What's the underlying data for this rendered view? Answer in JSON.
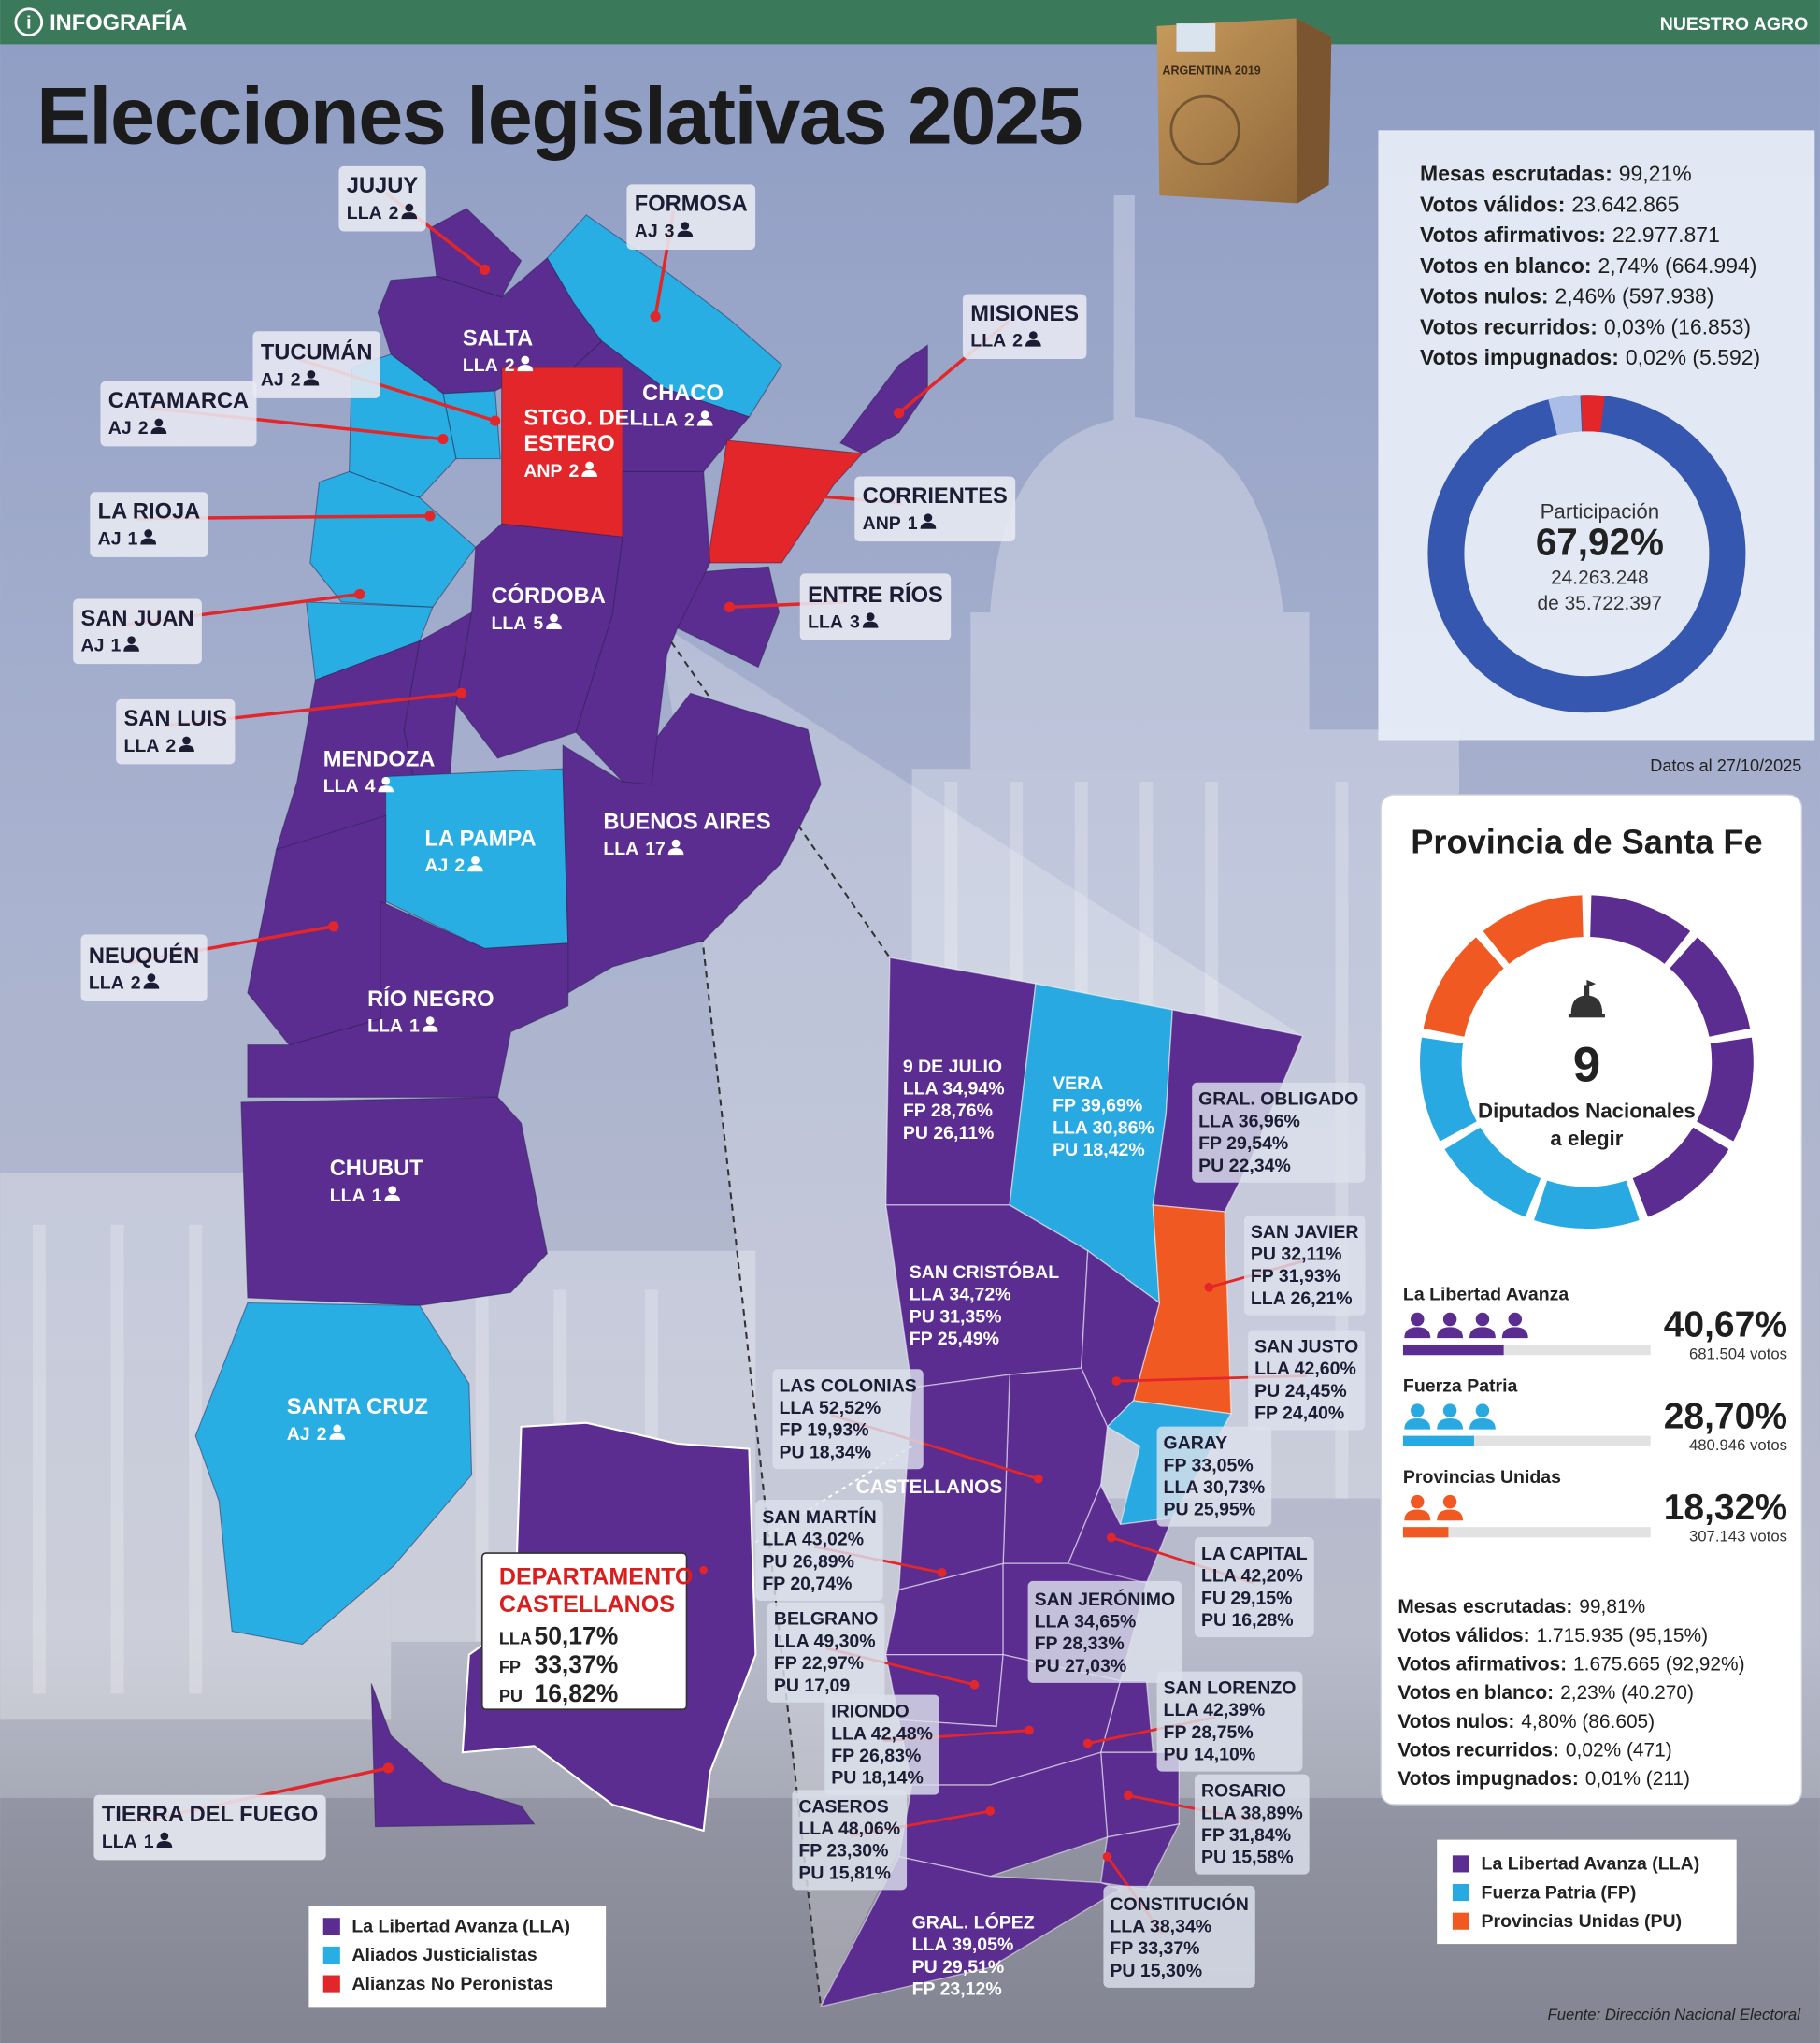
{
  "header": {
    "section": "INFOGRAFÍA",
    "brand": "NUESTRO AGRO"
  },
  "title": "Elecciones legislativas 2025",
  "ballot_box_label": "ARGENTINA 2019",
  "national": {
    "stats": [
      {
        "label": "Mesas escrutadas:",
        "value": "99,21%"
      },
      {
        "label": "Votos válidos:",
        "value": "23.642.865"
      },
      {
        "label": "Votos afirmativos:",
        "value": "22.977.871"
      },
      {
        "label": "Votos en blanco:",
        "value": "2,74% (664.994)"
      },
      {
        "label": "Votos nulos:",
        "value": "2,46% (597.938)"
      },
      {
        "label": "Votos recurridos:",
        "value": "0,03% (16.853)"
      },
      {
        "label": "Votos impugnados:",
        "value": "0,02% (5.592)"
      }
    ],
    "participation": {
      "label": "Participación",
      "value": "67,92%",
      "votes": "24.263.248",
      "total": "de 35.722.397"
    },
    "date": "Datos al 27/10/2025"
  },
  "provinces": [
    {
      "name": [
        "JUJUY"
      ],
      "party": "LLA",
      "seats": 2
    },
    {
      "name": [
        "FORMOSA"
      ],
      "party": "AJ",
      "seats": 3
    },
    {
      "name": [
        "MISIONES"
      ],
      "party": "LLA",
      "seats": 2
    },
    {
      "name": [
        "TUCUMÁN"
      ],
      "party": "AJ",
      "seats": 2
    },
    {
      "name": [
        "SALTA"
      ],
      "party": "LLA",
      "seats": 2
    },
    {
      "name": [
        "CATAMARCA"
      ],
      "party": "AJ",
      "seats": 2
    },
    {
      "name": [
        "STGO. DEL",
        "ESTERO"
      ],
      "party": "ANP",
      "seats": 2
    },
    {
      "name": [
        "CHACO"
      ],
      "party": "LLA",
      "seats": 2
    },
    {
      "name": [
        "LA RIOJA"
      ],
      "party": "AJ",
      "seats": 1
    },
    {
      "name": [
        "CORRIENTES"
      ],
      "party": "ANP",
      "seats": 1
    },
    {
      "name": [
        "CÓRDOBA"
      ],
      "party": "LLA",
      "seats": 5
    },
    {
      "name": [
        "ENTRE RÍOS"
      ],
      "party": "LLA",
      "seats": 3
    },
    {
      "name": [
        "SAN JUAN"
      ],
      "party": "AJ",
      "seats": 1
    },
    {
      "name": [
        "SAN LUIS"
      ],
      "party": "LLA",
      "seats": 2
    },
    {
      "name": [
        "MENDOZA"
      ],
      "party": "LLA",
      "seats": 4
    },
    {
      "name": [
        "LA PAMPA"
      ],
      "party": "AJ",
      "seats": 2
    },
    {
      "name": [
        "BUENOS AIRES"
      ],
      "party": "LLA",
      "seats": 17
    },
    {
      "name": [
        "NEUQUÉN"
      ],
      "party": "LLA",
      "seats": 2
    },
    {
      "name": [
        "RÍO NEGRO"
      ],
      "party": "LLA",
      "seats": 1
    },
    {
      "name": [
        "CHUBUT"
      ],
      "party": "LLA",
      "seats": 1
    },
    {
      "name": [
        "SANTA CRUZ"
      ],
      "party": "AJ",
      "seats": 2
    },
    {
      "name": [
        "TIERRA DEL FUEGO"
      ],
      "party": "LLA",
      "seats": 1
    }
  ],
  "map_legend": [
    {
      "name": "La Libertad Avanza (LLA)",
      "color": "#5b2d91"
    },
    {
      "name": "Aliados Justicialistas",
      "color": "#29aee3"
    },
    {
      "name": "Alianzas No Peronistas",
      "color": "#e3262a"
    }
  ],
  "departments": [
    {
      "name": "9 DE JULIO",
      "results": [
        "LLA 34,94%",
        "FP 28,76%",
        "PU 26,11%"
      ]
    },
    {
      "name": "VERA",
      "results": [
        "FP 39,69%",
        "LLA 30,86%",
        "PU 18,42%"
      ]
    },
    {
      "name": "GRAL. OBLIGADO",
      "results": [
        "LLA 36,96%",
        "FP 29,54%",
        "PU 22,34%"
      ]
    },
    {
      "name": "SAN JAVIER",
      "results": [
        "PU 32,11%",
        "FP 31,93%",
        "LLA 26,21%"
      ]
    },
    {
      "name": "SAN CRISTÓBAL",
      "results": [
        "LLA 34,72%",
        "PU 31,35%",
        "FP 25,49%"
      ]
    },
    {
      "name": "SAN JUSTO",
      "results": [
        "LLA 42,60%",
        "PU 24,45%",
        "FP 24,40%"
      ]
    },
    {
      "name": "LAS COLONIAS",
      "results": [
        "LLA 52,52%",
        "FP 19,93%",
        "PU 18,34%"
      ]
    },
    {
      "name": "GARAY",
      "results": [
        "FP 33,05%",
        "LLA 30,73%",
        "PU 25,95%"
      ]
    },
    {
      "name": "SAN MARTÍN",
      "results": [
        "LLA 43,02%",
        "PU 26,89%",
        "FP 20,74%"
      ]
    },
    {
      "name": "LA CAPITAL",
      "results": [
        "LLA 42,20%",
        "FU 29,15%",
        "PU 16,28%"
      ]
    },
    {
      "name": "SAN JERÓNIMO",
      "results": [
        "LLA 34,65%",
        "FP 28,33%",
        "PU 27,03%"
      ]
    },
    {
      "name": "BELGRANO",
      "results": [
        "LLA 49,30%",
        "FP 22,97%",
        "PU 17,09"
      ]
    },
    {
      "name": "SAN LORENZO",
      "results": [
        "LLA 42,39%",
        "FP 28,75%",
        "PU 14,10%"
      ]
    },
    {
      "name": "IRIONDO",
      "results": [
        "LLA 42,48%",
        "FP 26,83%",
        "PU 18,14%"
      ]
    },
    {
      "name": "ROSARIO",
      "results": [
        "LLA 38,89%",
        "FP 31,84%",
        "PU 15,58%"
      ]
    },
    {
      "name": "CASEROS",
      "results": [
        "LLA 48,06%",
        "FP 23,30%",
        "PU 15,81%"
      ]
    },
    {
      "name": "CONSTITUCIÓN",
      "results": [
        "LLA 38,34%",
        "FP 33,37%",
        "PU 15,30%"
      ]
    },
    {
      "name": "GRAL. LÓPEZ",
      "results": [
        "LLA 39,05%",
        "PU 29,51%",
        "FP 23,12%"
      ]
    }
  ],
  "castellanos": {
    "map_label": "CASTELLANOS",
    "title": [
      "DEPARTAMENTO",
      "CASTELLANOS"
    ],
    "results": [
      {
        "party": "LLA",
        "value": "50,17%"
      },
      {
        "party": "FP",
        "value": "33,37%"
      },
      {
        "party": "PU",
        "value": "16,82%"
      }
    ]
  },
  "santa_fe": {
    "title": "Provincia de Santa Fe",
    "seats_total": 9,
    "seats_label": [
      "Diputados Nacionales",
      "a elegir"
    ],
    "parties": [
      {
        "name": "La Libertad Avanza",
        "color": "#5b2d91",
        "seats": 4,
        "pct": 40.67,
        "pct_label": "40,67%",
        "votes": "681.504 votos"
      },
      {
        "name": "Fuerza Patria",
        "color": "#29a9e1",
        "seats": 3,
        "pct": 28.7,
        "pct_label": "28,70%",
        "votes": "480.946 votos"
      },
      {
        "name": "Provincias Unidas",
        "color": "#f05a22",
        "seats": 2,
        "pct": 18.32,
        "pct_label": "18,32%",
        "votes": "307.143 votos"
      }
    ],
    "stats": [
      {
        "label": "Mesas escrutadas:",
        "value": "99,81%"
      },
      {
        "label": "Votos válidos:",
        "value": "1.715.935 (95,15%)"
      },
      {
        "label": "Votos afirmativos:",
        "value": "1.675.665 (92,92%)"
      },
      {
        "label": "Votos en blanco:",
        "value": "2,23% (40.270)"
      },
      {
        "label": "Votos nulos:",
        "value": "4,80% (86.605)"
      },
      {
        "label": "Votos recurridos:",
        "value": "0,02% (471)"
      },
      {
        "label": "Votos impugnados:",
        "value": "0,01% (211)"
      }
    ],
    "legend": [
      {
        "name": "La Libertad Avanza (LLA)",
        "color": "#5b2d91"
      },
      {
        "name": "Fuerza Patria (FP)",
        "color": "#29a9e1"
      },
      {
        "name": "Provincias Unidas (PU)",
        "color": "#f05a22"
      }
    ]
  },
  "source": "Fuente: Dirección Nacional Electoral"
}
